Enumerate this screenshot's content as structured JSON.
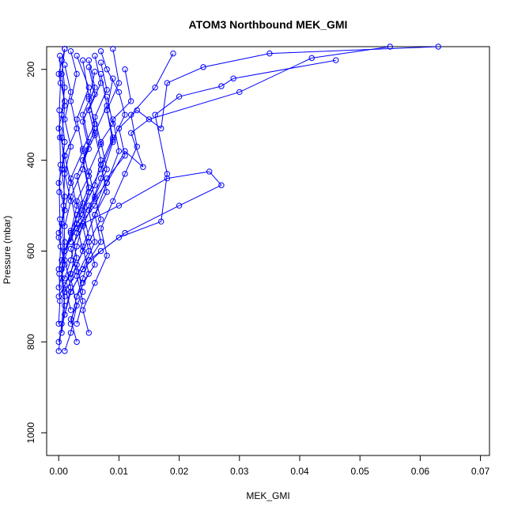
{
  "chart_data": {
    "type": "line",
    "title": "ATOM3 Northbound MEK_GMI",
    "xlabel": "MEK_GMI",
    "ylabel": "Pressure (mbar)",
    "xlim": [
      -0.002,
      0.0715
    ],
    "ylim": [
      1050,
      150
    ],
    "y_reversed": true,
    "x_ticks": [
      0.0,
      0.01,
      0.02,
      0.03,
      0.04,
      0.05,
      0.06,
      0.07
    ],
    "x_tick_labels": [
      "0.00",
      "0.01",
      "0.02",
      "0.03",
      "0.04",
      "0.05",
      "0.06",
      "0.07"
    ],
    "y_ticks": [
      200,
      400,
      600,
      800,
      1000
    ],
    "y_tick_labels": [
      "200",
      "400",
      "600",
      "800",
      "1000"
    ],
    "grid": false,
    "series_color": "#0000ff",
    "marker": "open-circle",
    "series": [
      {
        "points": [
          [
            0.0,
            820
          ],
          [
            0.0005,
            760
          ],
          [
            0.001,
            700
          ],
          [
            0.0005,
            640
          ],
          [
            0.001,
            580
          ],
          [
            0.0008,
            500
          ],
          [
            0.001,
            420
          ],
          [
            0.0005,
            350
          ],
          [
            0.001,
            280
          ],
          [
            0.0005,
            210
          ],
          [
            0.001,
            155
          ]
        ]
      },
      {
        "points": [
          [
            0.001,
            820
          ],
          [
            0.002,
            780
          ],
          [
            0.003,
            720
          ],
          [
            0.002,
            660
          ],
          [
            0.004,
            600
          ],
          [
            0.003,
            540
          ],
          [
            0.005,
            470
          ],
          [
            0.004,
            400
          ],
          [
            0.006,
            330
          ],
          [
            0.005,
            260
          ],
          [
            0.004,
            180
          ]
        ]
      },
      {
        "points": [
          [
            0.0,
            800
          ],
          [
            0.001,
            740
          ],
          [
            0.002,
            680
          ],
          [
            0.001,
            620
          ],
          [
            0.002,
            560
          ],
          [
            0.003,
            500
          ],
          [
            0.002,
            440
          ],
          [
            0.004,
            380
          ],
          [
            0.003,
            310
          ],
          [
            0.005,
            240
          ],
          [
            0.003,
            170
          ]
        ]
      },
      {
        "points": [
          [
            0.005,
            780
          ],
          [
            0.004,
            730
          ],
          [
            0.006,
            670
          ],
          [
            0.008,
            610
          ],
          [
            0.007,
            550
          ],
          [
            0.009,
            490
          ],
          [
            0.011,
            430
          ],
          [
            0.013,
            370
          ],
          [
            0.012,
            300
          ],
          [
            0.016,
            240
          ],
          [
            0.019,
            165
          ]
        ]
      },
      {
        "points": [
          [
            0.002,
            760
          ],
          [
            0.003,
            700
          ],
          [
            0.005,
            650
          ],
          [
            0.004,
            590
          ],
          [
            0.006,
            520
          ],
          [
            0.008,
            450
          ],
          [
            0.01,
            380
          ],
          [
            0.009,
            310
          ],
          [
            0.012,
            270
          ],
          [
            0.011,
            200
          ]
        ]
      },
      {
        "points": [
          [
            0.001,
            740
          ],
          [
            0.002,
            690
          ],
          [
            0.004,
            640
          ],
          [
            0.006,
            580
          ],
          [
            0.005,
            510
          ],
          [
            0.007,
            440
          ],
          [
            0.009,
            360
          ],
          [
            0.008,
            290
          ],
          [
            0.01,
            230
          ],
          [
            0.009,
            155
          ]
        ]
      },
      {
        "points": [
          [
            0.003,
            800
          ],
          [
            0.002,
            750
          ],
          [
            0.004,
            690
          ],
          [
            0.003,
            630
          ],
          [
            0.005,
            570
          ],
          [
            0.004,
            510
          ],
          [
            0.006,
            455
          ],
          [
            0.007,
            400
          ],
          [
            0.006,
            340
          ],
          [
            0.008,
            280
          ],
          [
            0.007,
            210
          ]
        ]
      },
      {
        "points": [
          [
            0.0,
            700
          ],
          [
            0.002,
            650
          ],
          [
            0.003,
            590
          ],
          [
            0.004,
            540
          ],
          [
            0.01,
            500
          ],
          [
            0.018,
            440
          ],
          [
            0.025,
            425
          ],
          [
            0.027,
            455
          ],
          [
            0.02,
            500
          ],
          [
            0.011,
            560
          ],
          [
            0.005,
            620
          ]
        ]
      },
      {
        "points": [
          [
            0.002,
            690
          ],
          [
            0.004,
            640
          ],
          [
            0.007,
            600
          ],
          [
            0.01,
            570
          ],
          [
            0.017,
            535
          ],
          [
            0.018,
            430
          ],
          [
            0.016,
            300
          ],
          [
            0.02,
            260
          ],
          [
            0.027,
            237
          ],
          [
            0.029,
            220
          ],
          [
            0.046,
            180
          ]
        ]
      },
      {
        "points": [
          [
            0.001,
            660
          ],
          [
            0.002,
            620
          ],
          [
            0.003,
            560
          ],
          [
            0.005,
            500
          ],
          [
            0.008,
            450
          ],
          [
            0.011,
            380
          ],
          [
            0.014,
            415
          ],
          [
            0.012,
            340
          ],
          [
            0.015,
            310
          ],
          [
            0.03,
            250
          ],
          [
            0.042,
            175
          ],
          [
            0.055,
            150
          ]
        ]
      },
      {
        "points": [
          [
            0.0,
            640
          ],
          [
            0.001,
            600
          ],
          [
            0.003,
            550
          ],
          [
            0.006,
            500
          ],
          [
            0.008,
            440
          ],
          [
            0.011,
            390
          ],
          [
            0.01,
            330
          ],
          [
            0.013,
            290
          ],
          [
            0.017,
            330
          ],
          [
            0.018,
            230
          ],
          [
            0.024,
            195
          ],
          [
            0.035,
            165
          ],
          [
            0.063,
            150
          ]
        ]
      },
      {
        "points": [
          [
            0.0005,
            620
          ],
          [
            0.002,
            560
          ],
          [
            0.004,
            520
          ],
          [
            0.005,
            470
          ],
          [
            0.007,
            420
          ],
          [
            0.009,
            355
          ],
          [
            0.011,
            300
          ],
          [
            0.01,
            250
          ],
          [
            0.008,
            200
          ],
          [
            0.007,
            160
          ]
        ]
      },
      {
        "points": [
          [
            0.001,
            600
          ],
          [
            0.003,
            540
          ],
          [
            0.002,
            480
          ],
          [
            0.004,
            420
          ],
          [
            0.005,
            360
          ],
          [
            0.004,
            300
          ],
          [
            0.006,
            240
          ],
          [
            0.005,
            180
          ]
        ]
      },
      {
        "points": [
          [
            0.002,
            580
          ],
          [
            0.003,
            520
          ],
          [
            0.005,
            460
          ],
          [
            0.004,
            400
          ],
          [
            0.006,
            345
          ],
          [
            0.005,
            290
          ],
          [
            0.007,
            230
          ],
          [
            0.006,
            170
          ]
        ]
      },
      {
        "points": [
          [
            0.0,
            560
          ],
          [
            0.001,
            510
          ],
          [
            0.002,
            450
          ],
          [
            0.001,
            390
          ],
          [
            0.003,
            330
          ],
          [
            0.002,
            270
          ],
          [
            0.003,
            210
          ],
          [
            0.002,
            160
          ]
        ]
      },
      {
        "points": [
          [
            0.001,
            545
          ],
          [
            0.002,
            490
          ],
          [
            0.001,
            430
          ],
          [
            0.002,
            370
          ],
          [
            0.001,
            310
          ],
          [
            0.002,
            250
          ],
          [
            0.001,
            190
          ]
        ]
      },
      {
        "points": [
          [
            0.003,
            700
          ],
          [
            0.004,
            660
          ],
          [
            0.005,
            620
          ],
          [
            0.007,
            580
          ],
          [
            0.006,
            520
          ],
          [
            0.008,
            470
          ],
          [
            0.007,
            410
          ],
          [
            0.009,
            350
          ],
          [
            0.008,
            290
          ],
          [
            0.009,
            220
          ]
        ]
      },
      {
        "points": [
          [
            0.0005,
            780
          ],
          [
            0.001,
            720
          ],
          [
            0.0005,
            660
          ],
          [
            0.001,
            600
          ],
          [
            0.0005,
            540
          ],
          [
            0.001,
            480
          ],
          [
            0.0005,
            420
          ],
          [
            0.001,
            360
          ],
          [
            0.0005,
            300
          ],
          [
            0.001,
            240
          ],
          [
            0.0005,
            180
          ]
        ]
      },
      {
        "points": [
          [
            0.004,
            670
          ],
          [
            0.006,
            630
          ],
          [
            0.005,
            580
          ],
          [
            0.007,
            530
          ],
          [
            0.006,
            480
          ],
          [
            0.008,
            420
          ],
          [
            0.007,
            360
          ],
          [
            0.009,
            320
          ],
          [
            0.008,
            260
          ]
        ]
      },
      {
        "points": [
          [
            0.001,
            690
          ],
          [
            0.003,
            645
          ],
          [
            0.002,
            595
          ],
          [
            0.004,
            545
          ],
          [
            0.003,
            490
          ],
          [
            0.005,
            435
          ],
          [
            0.004,
            375
          ],
          [
            0.006,
            320
          ],
          [
            0.005,
            265
          ],
          [
            0.006,
            205
          ]
        ]
      },
      {
        "points": [
          [
            0.0,
            760
          ],
          [
            0.0002,
            710
          ],
          [
            0.0001,
            650
          ],
          [
            0.0003,
            590
          ],
          [
            0.0002,
            530
          ],
          [
            0.0001,
            470
          ],
          [
            0.0003,
            410
          ],
          [
            0.0002,
            350
          ],
          [
            0.0001,
            290
          ],
          [
            0.0003,
            230
          ],
          [
            0.0002,
            170
          ]
        ]
      },
      {
        "points": [
          [
            0.002,
            730
          ],
          [
            0.001,
            675
          ],
          [
            0.003,
            615
          ],
          [
            0.002,
            555
          ],
          [
            0.004,
            495
          ],
          [
            0.003,
            435
          ],
          [
            0.005,
            375
          ],
          [
            0.004,
            315
          ],
          [
            0.006,
            255
          ],
          [
            0.005,
            195
          ]
        ]
      },
      {
        "points": [
          [
            0.0,
            680
          ],
          [
            0.001,
            630
          ],
          [
            0.0,
            570
          ],
          [
            0.001,
            510
          ],
          [
            0.0,
            450
          ],
          [
            0.001,
            390
          ],
          [
            0.0,
            330
          ],
          [
            0.001,
            270
          ],
          [
            0.0,
            210
          ],
          [
            0.001,
            155
          ]
        ]
      },
      {
        "points": [
          [
            0.003,
            760
          ],
          [
            0.004,
            710
          ],
          [
            0.003,
            655
          ],
          [
            0.005,
            600
          ],
          [
            0.004,
            545
          ],
          [
            0.006,
            485
          ],
          [
            0.005,
            425
          ],
          [
            0.007,
            365
          ],
          [
            0.006,
            305
          ],
          [
            0.008,
            245
          ],
          [
            0.007,
            185
          ]
        ]
      }
    ]
  }
}
